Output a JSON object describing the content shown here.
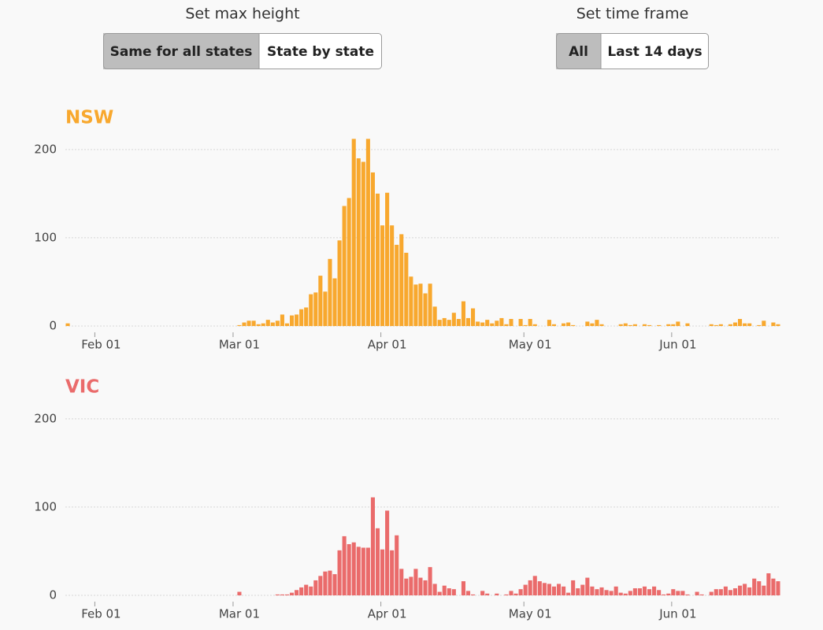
{
  "controls": [
    {
      "label": "Set max height",
      "options": [
        "Same for all states",
        "State by state"
      ],
      "selected": 0
    },
    {
      "label": "Set time frame",
      "options": [
        "All",
        "Last 14 days"
      ],
      "selected": 0
    }
  ],
  "chart_data": [
    {
      "type": "bar",
      "title": "NSW",
      "color": "#f8a82e",
      "categories": [
        null,
        null,
        null,
        null,
        null,
        null,
        null,
        "Feb 01",
        null,
        null,
        null,
        null,
        null,
        null,
        null,
        null,
        null,
        null,
        null,
        null,
        null,
        null,
        null,
        null,
        null,
        null,
        null,
        null,
        null,
        null,
        null,
        null,
        null,
        null,
        null,
        null,
        "Mar 01",
        null,
        null,
        null,
        null,
        null,
        null,
        null,
        null,
        null,
        null,
        null,
        null,
        null,
        null,
        null,
        null,
        null,
        null,
        null,
        null,
        null,
        null,
        null,
        null,
        null,
        null,
        null,
        null,
        null,
        null,
        "Apr 01",
        null,
        null,
        null,
        null,
        null,
        null,
        null,
        null,
        null,
        null,
        null,
        null,
        null,
        null,
        null,
        null,
        null,
        null,
        null,
        null,
        null,
        null,
        null,
        null,
        null,
        null,
        null,
        null,
        null,
        "May 01",
        null,
        null,
        null,
        null,
        null,
        null,
        null,
        null,
        null,
        null,
        null,
        null,
        null,
        null,
        null,
        null,
        null,
        null,
        null,
        null,
        null,
        null,
        null,
        null,
        null,
        null,
        null,
        null,
        null,
        null,
        "Jun 01",
        null,
        null,
        null,
        null,
        null,
        null,
        null,
        null,
        null,
        null,
        null,
        null,
        null,
        null,
        null,
        null,
        null,
        null,
        null,
        null,
        null
      ],
      "values": [
        3,
        0,
        0,
        0,
        0,
        0,
        0,
        0,
        0,
        0,
        0,
        0,
        0,
        0,
        0,
        0,
        0,
        0,
        0,
        0,
        0,
        0,
        0,
        0,
        0,
        0,
        0,
        0,
        0,
        0,
        0,
        0,
        0,
        0,
        0,
        0,
        1,
        4,
        6,
        6,
        2,
        3,
        7,
        4,
        6,
        13,
        3,
        12,
        13,
        19,
        21,
        36,
        38,
        57,
        39,
        76,
        54,
        97,
        136,
        145,
        212,
        190,
        186,
        212,
        174,
        150,
        114,
        151,
        114,
        92,
        104,
        83,
        56,
        47,
        48,
        37,
        48,
        22,
        7,
        9,
        7,
        15,
        8,
        28,
        9,
        20,
        5,
        4,
        7,
        3,
        6,
        9,
        2,
        8,
        0,
        8,
        1,
        8,
        2,
        0,
        0,
        7,
        2,
        0,
        3,
        4,
        1,
        0,
        0,
        5,
        3,
        7,
        2,
        0,
        0,
        0,
        2,
        3,
        1,
        2,
        0,
        2,
        1,
        0,
        1,
        0,
        2,
        2,
        5,
        0,
        3,
        0,
        0,
        0,
        0,
        2,
        1,
        2,
        0,
        2,
        4,
        8,
        3,
        3,
        0,
        1,
        6,
        0,
        4,
        2
      ],
      "ylim": [
        0,
        215
      ],
      "yticks": [
        0,
        100,
        200
      ],
      "grid": true
    },
    {
      "type": "bar",
      "title": "VIC",
      "color": "#ea6b6b",
      "categories": [
        null,
        null,
        null,
        null,
        null,
        null,
        null,
        "Feb 01",
        null,
        null,
        null,
        null,
        null,
        null,
        null,
        null,
        null,
        null,
        null,
        null,
        null,
        null,
        null,
        null,
        null,
        null,
        null,
        null,
        null,
        null,
        null,
        null,
        null,
        null,
        null,
        null,
        "Mar 01",
        null,
        null,
        null,
        null,
        null,
        null,
        null,
        null,
        null,
        null,
        null,
        null,
        null,
        null,
        null,
        null,
        null,
        null,
        null,
        null,
        null,
        null,
        null,
        null,
        null,
        null,
        null,
        null,
        null,
        null,
        "Apr 01",
        null,
        null,
        null,
        null,
        null,
        null,
        null,
        null,
        null,
        null,
        null,
        null,
        null,
        null,
        null,
        null,
        null,
        null,
        null,
        null,
        null,
        null,
        null,
        null,
        null,
        null,
        null,
        null,
        null,
        "May 01",
        null,
        null,
        null,
        null,
        null,
        null,
        null,
        null,
        null,
        null,
        null,
        null,
        null,
        null,
        null,
        null,
        null,
        null,
        null,
        null,
        null,
        null,
        null,
        null,
        null,
        null,
        null,
        null,
        null,
        null,
        "Jun 01",
        null,
        null,
        null,
        null,
        null,
        null,
        null,
        null,
        null,
        null,
        null,
        null,
        null,
        null,
        null,
        null,
        null,
        null,
        null,
        null,
        null
      ],
      "values": [
        0,
        0,
        0,
        0,
        0,
        0,
        0,
        0,
        0,
        0,
        0,
        0,
        0,
        0,
        0,
        0,
        0,
        0,
        0,
        0,
        0,
        0,
        0,
        0,
        0,
        0,
        0,
        0,
        0,
        0,
        0,
        0,
        0,
        0,
        0,
        0,
        4,
        0,
        0,
        0,
        0,
        0,
        0,
        0,
        1,
        1,
        1,
        3,
        6,
        9,
        12,
        10,
        17,
        22,
        27,
        28,
        24,
        51,
        67,
        58,
        60,
        55,
        54,
        54,
        111,
        76,
        52,
        96,
        51,
        68,
        30,
        19,
        21,
        30,
        20,
        17,
        32,
        13,
        4,
        11,
        8,
        7,
        0,
        16,
        5,
        1,
        0,
        5,
        2,
        0,
        2,
        0,
        1,
        5,
        2,
        7,
        12,
        17,
        22,
        16,
        14,
        13,
        10,
        13,
        10,
        3,
        17,
        8,
        12,
        20,
        10,
        7,
        9,
        6,
        5,
        10,
        3,
        2,
        5,
        8,
        8,
        10,
        7,
        10,
        6,
        1,
        2,
        7,
        5,
        5,
        1,
        0,
        4,
        1,
        0,
        4,
        7,
        7,
        10,
        6,
        8,
        11,
        13,
        9,
        19,
        16,
        11,
        25,
        19,
        16
      ],
      "ylim": [
        0,
        215
      ],
      "yticks": [
        0,
        100,
        200
      ],
      "grid": true
    }
  ]
}
